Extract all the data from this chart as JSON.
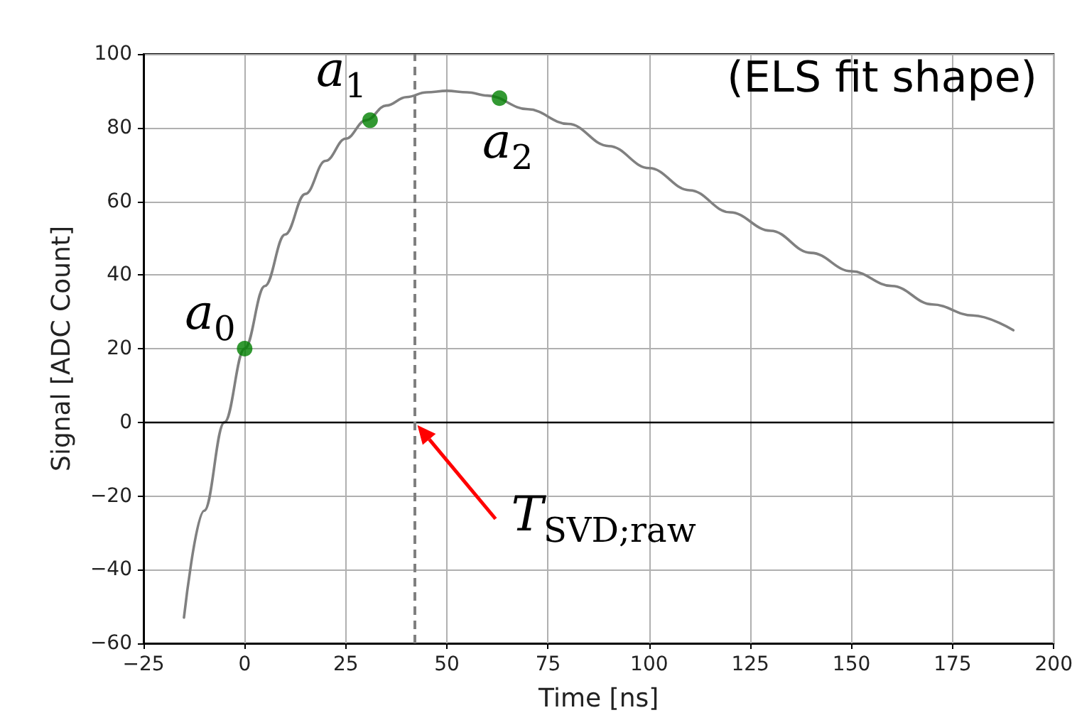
{
  "chart_data": {
    "type": "line",
    "xlabel": "Time [ns]",
    "ylabel": "Signal [ADC Count]",
    "xlim": [
      -25,
      200
    ],
    "xticks": [
      -25,
      0,
      25,
      50,
      75,
      100,
      125,
      150,
      175,
      200
    ],
    "ylim": [
      -60,
      100
    ],
    "yticks": [
      -60,
      -40,
      -20,
      0,
      20,
      40,
      60,
      80,
      100
    ],
    "grid": true,
    "marker": "none",
    "line_style": "solid",
    "series": [
      {
        "color": "#808080",
        "x": [
          -15,
          -10,
          -5,
          0,
          5,
          10,
          15,
          20,
          25,
          30,
          35,
          40,
          45,
          50,
          55,
          60,
          70,
          80,
          90,
          100,
          110,
          120,
          130,
          140,
          150,
          160,
          170,
          180,
          190
        ],
        "values": [
          -53,
          -24,
          0,
          20,
          37,
          51,
          62,
          71,
          77,
          82,
          86,
          88.3,
          89.6,
          90,
          89.6,
          88.7,
          85,
          81,
          75,
          69,
          63,
          57,
          52,
          46,
          41,
          37,
          32,
          29,
          25
        ]
      },
      {
        "type": "scatter",
        "color": "#008000",
        "marker": "circle",
        "x": [
          0,
          31,
          63
        ],
        "values": [
          20,
          82,
          88
        ]
      }
    ],
    "ref_lines": [
      {
        "axis": "y",
        "value": 0,
        "color": "#000000",
        "line_style": "solid"
      },
      {
        "axis": "x",
        "value": 42,
        "color": "#808080",
        "line_style": "dashed"
      }
    ],
    "annotations": [
      {
        "text": "a$_{0}$",
        "x": 0,
        "y": 20
      },
      {
        "text": "a$_{1}$",
        "x": 31,
        "y": 82
      },
      {
        "text": "a$_{2}$",
        "x": 63,
        "y": 88
      },
      "(ELS fit shape)",
      {
        "text": "T$_{SVD;raw}$",
        "x": 42,
        "y": 0
      }
    ]
  }
}
